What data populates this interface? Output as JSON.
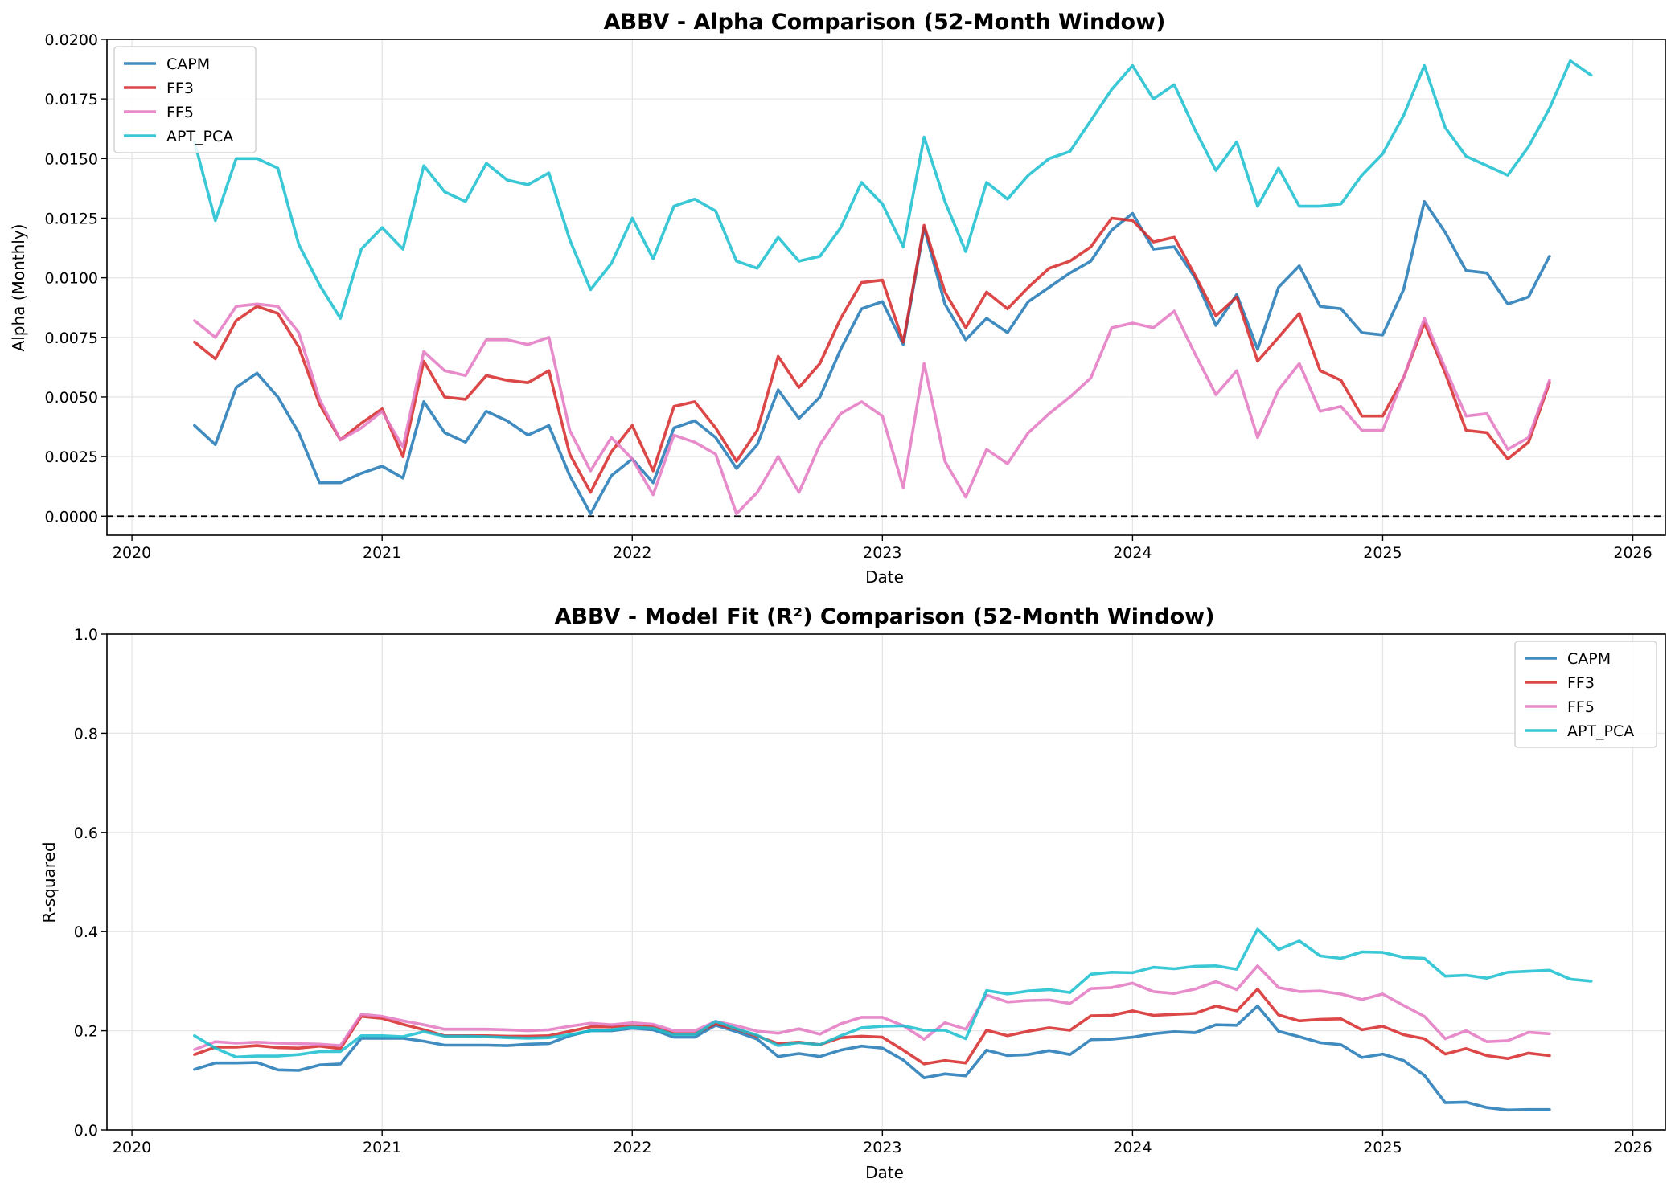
{
  "chart_data": [
    {
      "type": "line",
      "title": "ABBV - Alpha Comparison (52-Month Window)",
      "xlabel": "Date",
      "ylabel": "Alpha (Monthly)",
      "xlim": [
        2019.9,
        2026.13
      ],
      "ylim": [
        -0.0008,
        0.02
      ],
      "x_ticks": [
        2020,
        2021,
        2022,
        2023,
        2024,
        2025,
        2026
      ],
      "x_tick_labels": [
        "2020",
        "2021",
        "2022",
        "2023",
        "2024",
        "2025",
        "2026"
      ],
      "y_ticks": [
        0,
        0.0025,
        0.005,
        0.0075,
        0.01,
        0.0125,
        0.015,
        0.0175,
        0.02
      ],
      "y_tick_labels": [
        "0.0000",
        "0.0025",
        "0.0050",
        "0.0075",
        "0.0100",
        "0.0125",
        "0.0150",
        "0.0175",
        "0.0200"
      ],
      "reference_line": {
        "y": 0,
        "style": "dashed",
        "color": "#000000"
      },
      "grid": true,
      "legend_position": "upper-left",
      "x": [
        "2020-04",
        "2020-05",
        "2020-06",
        "2020-07",
        "2020-08",
        "2020-09",
        "2020-10",
        "2020-11",
        "2020-12",
        "2021-01",
        "2021-02",
        "2021-03",
        "2021-04",
        "2021-05",
        "2021-06",
        "2021-07",
        "2021-08",
        "2021-09",
        "2021-10",
        "2021-11",
        "2021-12",
        "2022-01",
        "2022-02",
        "2022-03",
        "2022-04",
        "2022-05",
        "2022-06",
        "2022-07",
        "2022-08",
        "2022-09",
        "2022-10",
        "2022-11",
        "2022-12",
        "2023-01",
        "2023-02",
        "2023-03",
        "2023-04",
        "2023-05",
        "2023-06",
        "2023-07",
        "2023-08",
        "2023-09",
        "2023-10",
        "2023-11",
        "2023-12",
        "2024-01",
        "2024-02",
        "2024-03",
        "2024-04",
        "2024-05",
        "2024-06",
        "2024-07",
        "2024-08",
        "2024-09",
        "2024-10",
        "2024-11",
        "2024-12",
        "2025-01",
        "2025-02",
        "2025-03",
        "2025-04",
        "2025-05",
        "2025-06",
        "2025-07",
        "2025-08",
        "2025-09",
        "2025-10",
        "2025-11"
      ],
      "series": [
        {
          "name": "CAPM",
          "color": "#1f77b4",
          "values": [
            0.0038,
            0.003,
            0.0054,
            0.006,
            0.005,
            0.0035,
            0.0014,
            0.0014,
            0.0018,
            0.0021,
            0.0016,
            0.0048,
            0.0035,
            0.0031,
            0.0044,
            0.004,
            0.0034,
            0.0038,
            0.0017,
            0.0001,
            0.0017,
            0.0024,
            0.0014,
            0.0037,
            0.004,
            0.0033,
            0.002,
            0.003,
            0.0053,
            0.0041,
            0.005,
            0.007,
            0.0087,
            0.009,
            0.0072,
            0.0121,
            0.0089,
            0.0074,
            0.0083,
            0.0077,
            0.009,
            0.0096,
            0.0102,
            0.0107,
            0.012,
            0.0127,
            0.0112,
            0.0113,
            0.01,
            0.008,
            0.0093,
            0.007,
            0.0096,
            0.0105,
            0.0088,
            0.0087,
            0.0077,
            0.0076,
            0.0095,
            0.0132,
            0.0119,
            0.0103,
            0.0102,
            0.0089,
            0.0092,
            0.0109,
            null,
            null
          ]
        },
        {
          "name": "FF3",
          "color": "#d62728",
          "values": [
            0.0073,
            0.0066,
            0.0082,
            0.0088,
            0.0085,
            0.0071,
            0.0047,
            0.0032,
            0.0039,
            0.0045,
            0.0025,
            0.0065,
            0.005,
            0.0049,
            0.0059,
            0.0057,
            0.0056,
            0.0061,
            0.0026,
            0.001,
            0.0027,
            0.0038,
            0.0019,
            0.0046,
            0.0048,
            0.0037,
            0.0023,
            0.0036,
            0.0067,
            0.0054,
            0.0064,
            0.0083,
            0.0098,
            0.0099,
            0.0073,
            0.0122,
            0.0094,
            0.0079,
            0.0094,
            0.0087,
            0.0096,
            0.0104,
            0.0107,
            0.0113,
            0.0125,
            0.0124,
            0.0115,
            0.0117,
            0.0101,
            0.0084,
            0.0092,
            0.0065,
            0.0075,
            0.0085,
            0.0061,
            0.0057,
            0.0042,
            0.0042,
            0.0058,
            0.0081,
            0.006,
            0.0036,
            0.0035,
            0.0024,
            0.0031,
            0.0056,
            null,
            null
          ]
        },
        {
          "name": "FF5",
          "color": "#e377c2",
          "values": [
            0.0082,
            0.0075,
            0.0088,
            0.0089,
            0.0088,
            0.0077,
            0.0049,
            0.0032,
            0.0037,
            0.0044,
            0.0029,
            0.0069,
            0.0061,
            0.0059,
            0.0074,
            0.0074,
            0.0072,
            0.0075,
            0.0036,
            0.0019,
            0.0033,
            0.0024,
            0.0009,
            0.0034,
            0.0031,
            0.0026,
            0.0001,
            0.001,
            0.0025,
            0.001,
            0.003,
            0.0043,
            0.0048,
            0.0042,
            0.0012,
            0.0064,
            0.0023,
            0.0008,
            0.0028,
            0.0022,
            0.0035,
            0.0043,
            0.005,
            0.0058,
            0.0079,
            0.0081,
            0.0079,
            0.0086,
            0.0068,
            0.0051,
            0.0061,
            0.0033,
            0.0053,
            0.0064,
            0.0044,
            0.0046,
            0.0036,
            0.0036,
            0.0058,
            0.0083,
            0.0062,
            0.0042,
            0.0043,
            0.0028,
            0.0033,
            0.0057,
            null,
            null
          ]
        },
        {
          "name": "APT_PCA",
          "color": "#17becf",
          "values": [
            0.0157,
            0.0124,
            0.015,
            0.015,
            0.0146,
            0.0114,
            0.0097,
            0.0083,
            0.0112,
            0.0121,
            0.0112,
            0.0147,
            0.0136,
            0.0132,
            0.0148,
            0.0141,
            0.0139,
            0.0144,
            0.0116,
            0.0095,
            0.0106,
            0.0125,
            0.0108,
            0.013,
            0.0133,
            0.0128,
            0.0107,
            0.0104,
            0.0117,
            0.0107,
            0.0109,
            0.0121,
            0.014,
            0.0131,
            0.0113,
            0.0159,
            0.0132,
            0.0111,
            0.014,
            0.0133,
            0.0143,
            0.015,
            0.0153,
            0.0166,
            0.0179,
            0.0189,
            0.0175,
            0.0181,
            0.0162,
            0.0145,
            0.0157,
            0.013,
            0.0146,
            0.013,
            0.013,
            0.0131,
            0.0143,
            0.0152,
            0.0168,
            0.0189,
            0.0163,
            0.0151,
            0.0147,
            0.0143,
            0.0155,
            0.0171,
            0.0191,
            0.0185
          ]
        }
      ]
    },
    {
      "type": "line",
      "title": "ABBV - Model Fit (R²) Comparison (52-Month Window)",
      "xlabel": "Date",
      "ylabel": "R-squared",
      "xlim": [
        2019.9,
        2026.13
      ],
      "ylim": [
        0,
        1
      ],
      "x_ticks": [
        2020,
        2021,
        2022,
        2023,
        2024,
        2025,
        2026
      ],
      "x_tick_labels": [
        "2020",
        "2021",
        "2022",
        "2023",
        "2024",
        "2025",
        "2026"
      ],
      "y_ticks": [
        0,
        0.2,
        0.4,
        0.6,
        0.8,
        1.0
      ],
      "y_tick_labels": [
        "0.0",
        "0.2",
        "0.4",
        "0.6",
        "0.8",
        "1.0"
      ],
      "grid": true,
      "legend_position": "upper-right",
      "x": [
        "2020-04",
        "2020-05",
        "2020-06",
        "2020-07",
        "2020-08",
        "2020-09",
        "2020-10",
        "2020-11",
        "2020-12",
        "2021-01",
        "2021-02",
        "2021-03",
        "2021-04",
        "2021-05",
        "2021-06",
        "2021-07",
        "2021-08",
        "2021-09",
        "2021-10",
        "2021-11",
        "2021-12",
        "2022-01",
        "2022-02",
        "2022-03",
        "2022-04",
        "2022-05",
        "2022-06",
        "2022-07",
        "2022-08",
        "2022-09",
        "2022-10",
        "2022-11",
        "2022-12",
        "2023-01",
        "2023-02",
        "2023-03",
        "2023-04",
        "2023-05",
        "2023-06",
        "2023-07",
        "2023-08",
        "2023-09",
        "2023-10",
        "2023-11",
        "2023-12",
        "2024-01",
        "2024-02",
        "2024-03",
        "2024-04",
        "2024-05",
        "2024-06",
        "2024-07",
        "2024-08",
        "2024-09",
        "2024-10",
        "2024-11",
        "2024-12",
        "2025-01",
        "2025-02",
        "2025-03",
        "2025-04",
        "2025-05",
        "2025-06",
        "2025-07",
        "2025-08",
        "2025-09",
        "2025-10",
        "2025-11"
      ],
      "series": [
        {
          "name": "CAPM",
          "color": "#1f77b4",
          "values": [
            0.122,
            0.135,
            0.135,
            0.136,
            0.121,
            0.12,
            0.131,
            0.133,
            0.185,
            0.185,
            0.185,
            0.179,
            0.171,
            0.171,
            0.171,
            0.17,
            0.173,
            0.174,
            0.19,
            0.2,
            0.2,
            0.205,
            0.202,
            0.187,
            0.187,
            0.211,
            0.198,
            0.183,
            0.148,
            0.154,
            0.148,
            0.161,
            0.169,
            0.165,
            0.141,
            0.105,
            0.113,
            0.109,
            0.161,
            0.15,
            0.152,
            0.16,
            0.152,
            0.182,
            0.183,
            0.187,
            0.194,
            0.198,
            0.196,
            0.212,
            0.211,
            0.25,
            0.199,
            0.188,
            0.176,
            0.172,
            0.146,
            0.153,
            0.14,
            0.11,
            0.055,
            0.056,
            0.045,
            0.04,
            0.041,
            0.041,
            null,
            null
          ]
        },
        {
          "name": "FF3",
          "color": "#d62728",
          "values": [
            0.152,
            0.167,
            0.167,
            0.17,
            0.166,
            0.165,
            0.169,
            0.164,
            0.229,
            0.225,
            0.213,
            0.202,
            0.19,
            0.19,
            0.19,
            0.189,
            0.189,
            0.19,
            0.199,
            0.208,
            0.208,
            0.21,
            0.208,
            0.194,
            0.194,
            0.214,
            0.203,
            0.189,
            0.174,
            0.177,
            0.172,
            0.186,
            0.189,
            0.187,
            0.161,
            0.133,
            0.14,
            0.135,
            0.201,
            0.19,
            0.199,
            0.206,
            0.201,
            0.23,
            0.231,
            0.24,
            0.231,
            0.233,
            0.235,
            0.25,
            0.24,
            0.284,
            0.232,
            0.22,
            0.223,
            0.224,
            0.202,
            0.209,
            0.192,
            0.184,
            0.153,
            0.164,
            0.15,
            0.144,
            0.155,
            0.15,
            null,
            null
          ]
        },
        {
          "name": "FF5",
          "color": "#e377c2",
          "values": [
            0.162,
            0.178,
            0.175,
            0.177,
            0.175,
            0.174,
            0.173,
            0.17,
            0.233,
            0.229,
            0.22,
            0.212,
            0.203,
            0.203,
            0.203,
            0.202,
            0.2,
            0.202,
            0.209,
            0.215,
            0.212,
            0.216,
            0.213,
            0.2,
            0.2,
            0.219,
            0.21,
            0.199,
            0.195,
            0.204,
            0.193,
            0.214,
            0.227,
            0.227,
            0.21,
            0.183,
            0.216,
            0.203,
            0.272,
            0.258,
            0.261,
            0.262,
            0.255,
            0.285,
            0.287,
            0.296,
            0.279,
            0.275,
            0.284,
            0.299,
            0.283,
            0.331,
            0.287,
            0.279,
            0.28,
            0.274,
            0.263,
            0.274,
            0.251,
            0.229,
            0.184,
            0.2,
            0.178,
            0.18,
            0.197,
            0.194,
            null,
            null
          ]
        },
        {
          "name": "APT_PCA",
          "color": "#17becf",
          "values": [
            0.19,
            0.165,
            0.147,
            0.149,
            0.149,
            0.152,
            0.158,
            0.158,
            0.19,
            0.19,
            0.188,
            0.198,
            0.189,
            0.189,
            0.188,
            0.186,
            0.185,
            0.186,
            0.192,
            0.2,
            0.202,
            0.207,
            0.205,
            0.192,
            0.192,
            0.219,
            0.204,
            0.191,
            0.17,
            0.176,
            0.172,
            0.19,
            0.206,
            0.209,
            0.21,
            0.201,
            0.201,
            0.184,
            0.281,
            0.274,
            0.28,
            0.283,
            0.277,
            0.314,
            0.318,
            0.317,
            0.328,
            0.325,
            0.33,
            0.331,
            0.324,
            0.405,
            0.364,
            0.381,
            0.351,
            0.346,
            0.359,
            0.358,
            0.348,
            0.346,
            0.31,
            0.312,
            0.306,
            0.318,
            0.32,
            0.322,
            0.304,
            0.3
          ]
        }
      ]
    }
  ]
}
